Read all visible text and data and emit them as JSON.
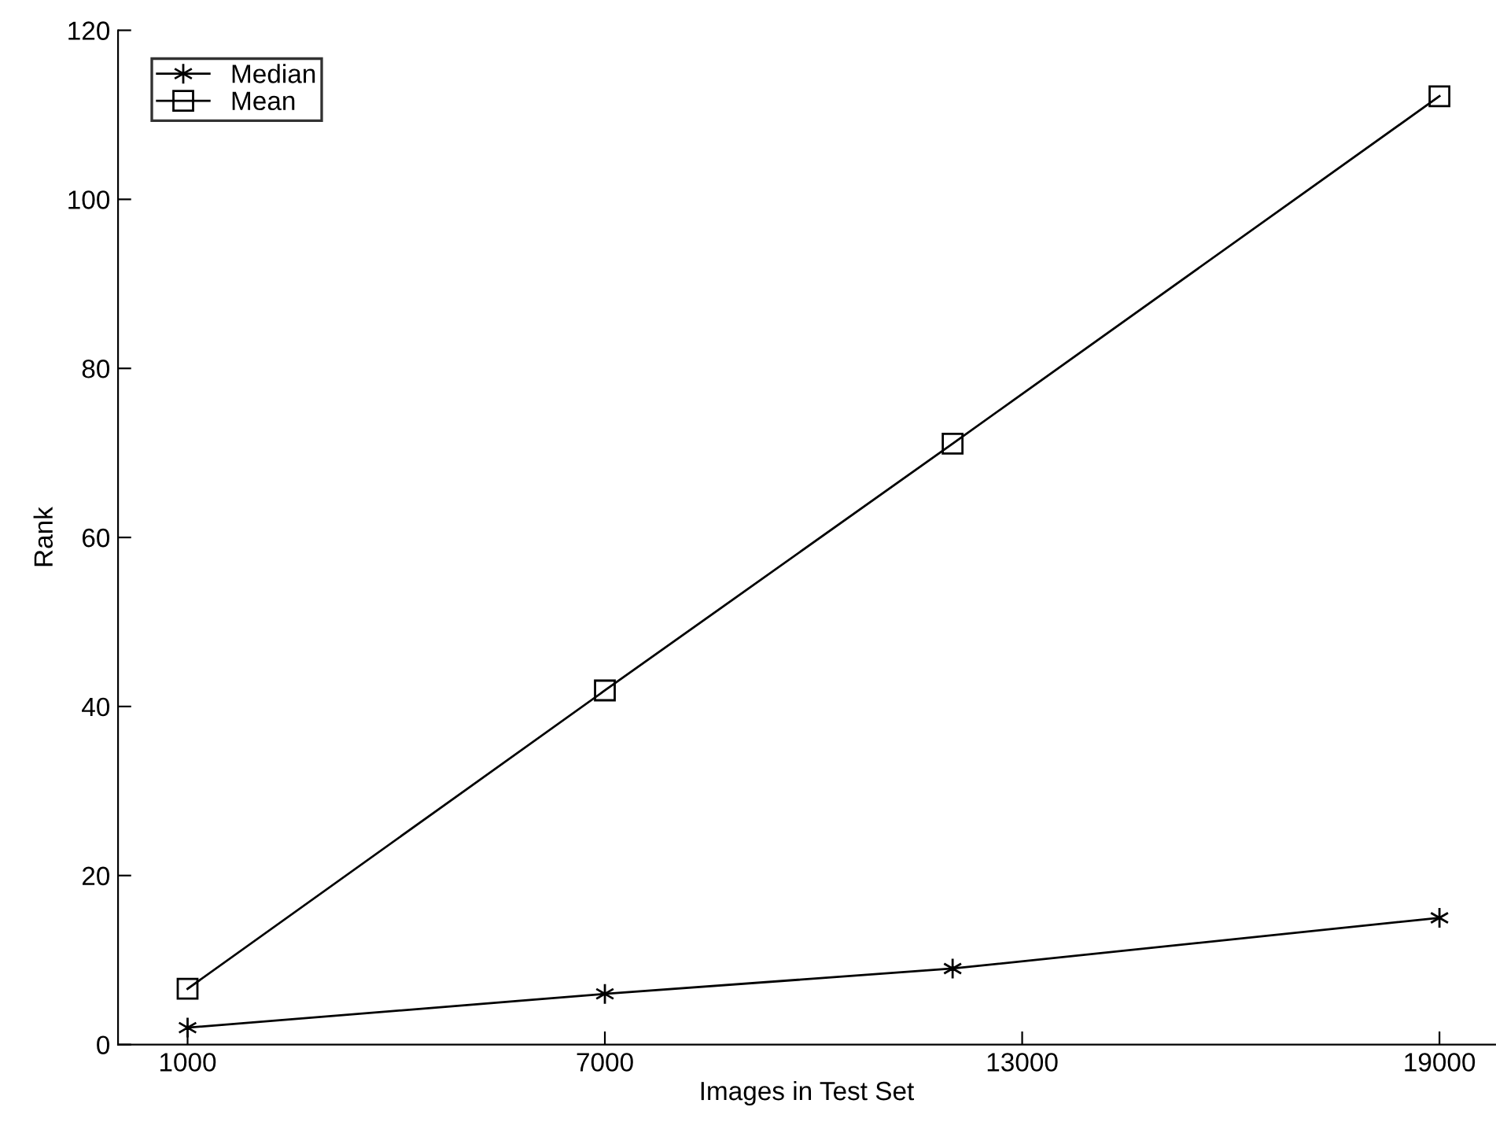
{
  "chart_data": {
    "type": "line",
    "xlabel": "Images in Test Set",
    "ylabel": "Rank",
    "x": [
      1000,
      7000,
      12000,
      19000
    ],
    "series": [
      {
        "name": "Median",
        "color": "#000000",
        "marker": "cross",
        "values": [
          2,
          6,
          9,
          15
        ]
      },
      {
        "name": "Mean",
        "color": "#000000",
        "marker": "square",
        "values": [
          6.6,
          41.9,
          71.1,
          112.2
        ]
      }
    ],
    "xlim": [
      0,
      19800
    ],
    "xticks": [
      1000,
      7000,
      13000,
      19000
    ],
    "ylim": [
      0,
      120
    ],
    "yticks": [
      0,
      20,
      40,
      60,
      80,
      100,
      120
    ],
    "grid": false,
    "legend": "top left",
    "line_style": "solid"
  }
}
